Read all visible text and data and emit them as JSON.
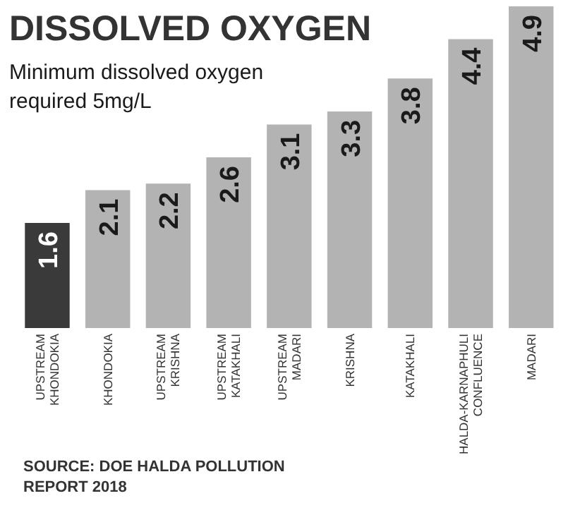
{
  "chart_data": {
    "type": "bar",
    "title": "DISSOLVED OXYGEN",
    "subtitle": "Minimum dissolved oxygen\nrequired 5mg/L",
    "categories": [
      "UPSTREAM KHONDOKIA",
      "KHONDOKIA",
      "UPSTREAM KRISHNA",
      "UPSTREAM KATAKHALI",
      "UPSTREAM MADARI",
      "KRISHNA",
      "KATAKHALI",
      "HALDA-KARNAPHULI CONFLUENCE",
      "MADARI"
    ],
    "values": [
      1.6,
      2.1,
      2.2,
      2.6,
      3.1,
      3.3,
      3.8,
      4.4,
      4.9
    ],
    "colors": [
      "#3a3a3a",
      "#b3b3b3",
      "#b3b3b3",
      "#b3b3b3",
      "#b3b3b3",
      "#b3b3b3",
      "#b3b3b3",
      "#b3b3b3",
      "#b3b3b3"
    ],
    "data_labels": true,
    "annotations": [
      "SOURCE: DOE HALDA POLLUTION\nREPORT 2018"
    ]
  }
}
